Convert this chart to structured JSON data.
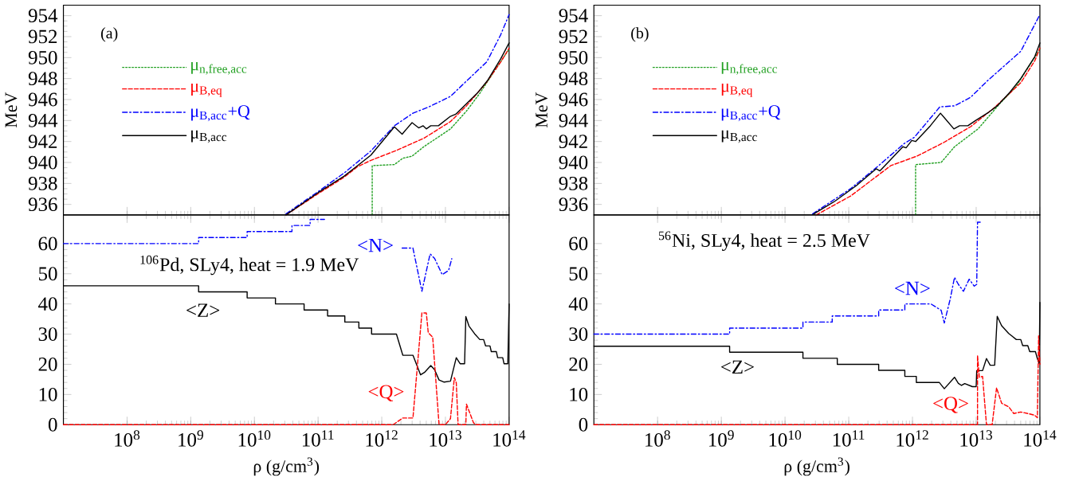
{
  "chart_data": [
    {
      "type": "line",
      "log": "x",
      "xlim": [
        10000000.0,
        100000000000000.0
      ],
      "ylim": [
        935,
        955
      ],
      "tick_labels": "y",
      "legend": "top left",
      "ylabel": "MeV",
      "annotations": [
        "(a)"
      ],
      "xticks": [
        {
          "value": 100000000.0,
          "label": null
        },
        {
          "value": 1000000000.0,
          "label": null
        },
        {
          "value": 10000000000.0,
          "label": null
        },
        {
          "value": 100000000000.0,
          "label": null
        },
        {
          "value": 1000000000000.0,
          "label": null
        },
        {
          "value": 10000000000000.0,
          "label": null
        },
        {
          "value": 100000000000000.0,
          "label": null
        }
      ],
      "yticks": [
        936,
        938,
        940,
        942,
        944,
        946,
        948,
        950,
        952,
        954
      ],
      "series": [
        {
          "name": "μ$_{n,free,acc}$",
          "color": "#22a022",
          "line_style": "dotted",
          "x": [
            708000000000.0,
            708000000000.0,
            1580000000000.0,
            2140000000000.0,
            2990000000000.0,
            4570000000000.0,
            12000000000000.0,
            21400000000000.0,
            34700000000000.0,
            63100000000000.0,
            100000000000000.0
          ],
          "values": [
            935.0,
            939.7,
            939.8,
            940.4,
            940.6,
            941.5,
            943.2,
            944.9,
            946.6,
            949.0,
            950.8
          ]
        },
        {
          "name": "μ$_{B,eq}$",
          "color": "#ff0000",
          "line_style": "dashed",
          "x": [
            31300000000.0,
            99000000000.0,
            257000000000.0,
            417000000000.0,
            676000000000.0,
            1780000000000.0,
            4570000000000.0,
            12000000000000.0,
            21400000000000.0,
            43700000000000.0,
            74100000000000.0,
            100000000000000.0
          ],
          "values": [
            935.0,
            937.0,
            938.6,
            939.6,
            940.2,
            941.2,
            942.3,
            943.9,
            945.4,
            947.6,
            949.6,
            950.9
          ]
        },
        {
          "name": "μ$_{B,acc}$+Q",
          "color": "#0000ff",
          "line_style": "dashdot",
          "x": [
            31300000000.0,
            99000000000.0,
            257000000000.0,
            676000000000.0,
            1580000000000.0,
            3090000000000.0,
            5500000000000.0,
            12000000000000.0,
            17800000000000.0,
            44700000000000.0,
            74100000000000.0,
            100000000000000.0
          ],
          "values": [
            935.1,
            937.2,
            939.0,
            941.1,
            943.5,
            944.7,
            945.3,
            946.3,
            947.3,
            949.6,
            952.2,
            954.1
          ]
        },
        {
          "name": "μ$_{B,acc}$",
          "color": "#000000",
          "line_style": "solid",
          "x": [
            31300000000.0,
            99000000000.0,
            257000000000.0,
            417000000000.0,
            676000000000.0,
            1580000000000.0,
            2090000000000.0,
            2990000000000.0,
            3800000000000.0,
            4470000000000.0,
            5010000000000.0,
            5890000000000.0,
            7760000000000.0,
            12000000000000.0,
            14500000000000.0,
            21400000000000.0,
            31600000000000.0,
            45700000000000.0,
            74100000000000.0,
            100000000000000.0
          ],
          "values": [
            935.0,
            937.1,
            938.7,
            939.7,
            940.7,
            943.4,
            942.7,
            943.8,
            943.3,
            943.5,
            943.2,
            943.5,
            943.5,
            944.4,
            944.6,
            945.6,
            946.6,
            947.8,
            949.9,
            951.4
          ]
        }
      ]
    },
    {
      "type": "line",
      "log": "x",
      "xlim": [
        10000000.0,
        100000000000000.0
      ],
      "ylim": [
        935,
        955
      ],
      "tick_labels": "y",
      "legend": "top left",
      "ylabel": "MeV",
      "annotations": [
        "(b)"
      ],
      "xticks": [
        {
          "value": 100000000.0,
          "label": null
        },
        {
          "value": 1000000000.0,
          "label": null
        },
        {
          "value": 10000000000.0,
          "label": null
        },
        {
          "value": 100000000000.0,
          "label": null
        },
        {
          "value": 1000000000000.0,
          "label": null
        },
        {
          "value": 10000000000000.0,
          "label": null
        },
        {
          "value": 100000000000000.0,
          "label": null
        }
      ],
      "yticks": [
        936,
        938,
        940,
        942,
        944,
        946,
        948,
        950,
        952,
        954
      ],
      "series": [
        {
          "name": "μ$_{n,free,acc}$",
          "color": "#22a022",
          "line_style": "dotted",
          "x": [
            1120000000000.0,
            1120000000000.0,
            2820000000000.0,
            4570000000000.0,
            10700000000000.0,
            23400000000000.0,
            41700000000000.0,
            100000000000000.0
          ],
          "values": [
            935.0,
            939.8,
            940.0,
            941.5,
            943.2,
            945.6,
            947.2,
            950.8
          ]
        },
        {
          "name": "μ$_{B,eq}$",
          "color": "#ff0000",
          "line_style": "dashed",
          "x": [
            30900000000.0,
            107000000000.0,
            457000000000.0,
            1170000000000.0,
            3090000000000.0,
            8130000000000.0,
            19100000000000.0,
            50100000000000.0,
            83200000000000.0,
            100000000000000.0
          ],
          "values": [
            935.0,
            936.8,
            939.7,
            940.6,
            941.9,
            943.4,
            945.2,
            947.6,
            949.7,
            950.9
          ]
        },
        {
          "name": "μ$_{B,acc}$+Q",
          "color": "#0000ff",
          "line_style": "dashdot",
          "x": [
            27000000000.0,
            107000000000.0,
            282000000000.0,
            741000000000.0,
            1070000000000.0,
            2690000000000.0,
            4570000000000.0,
            8130000000000.0,
            15100000000000.0,
            50100000000000.0,
            100000000000000.0
          ],
          "values": [
            935.1,
            937.5,
            939.6,
            941.8,
            942.4,
            945.3,
            945.4,
            946.2,
            947.8,
            950.6,
            954.1
          ]
        },
        {
          "name": "μ$_{B,acc}$",
          "color": "#000000",
          "line_style": "solid",
          "x": [
            28200000000.0,
            60300000000.0,
            132000000000.0,
            269000000000.0,
            309000000000.0,
            708000000000.0,
            794000000000.0,
            977000000000.0,
            1120000000000.0,
            1910000000000.0,
            2750000000000.0,
            3240000000000.0,
            4470000000000.0,
            5500000000000.0,
            7410000000000.0,
            9770000000000.0,
            15800000000000.0,
            21400000000000.0,
            33900000000000.0,
            50100000000000.0,
            83200000000000.0,
            100000000000000.0
          ],
          "values": [
            935.1,
            936.3,
            937.8,
            939.4,
            939.2,
            941.5,
            941.4,
            942.1,
            942.0,
            943.5,
            944.7,
            944.2,
            943.2,
            943.5,
            943.5,
            944.0,
            944.8,
            945.4,
            946.7,
            948.0,
            950.1,
            951.4
          ]
        }
      ]
    },
    {
      "type": "line",
      "log": "x",
      "xlim": [
        10000000.0,
        100000000000000.0
      ],
      "ylim": [
        0,
        69.5
      ],
      "xlabel": "ρ (g/cm$^{3}$)",
      "annotations": [
        "$^{106}$Pd, SLy4, heat = 1.9 MeV"
      ],
      "xticks": [
        {
          "value": 100000000.0,
          "label": "10$^{8}$"
        },
        {
          "value": 1000000000.0,
          "label": "10$^{9}$"
        },
        {
          "value": 10000000000.0,
          "label": "10$^{10}$"
        },
        {
          "value": 100000000000.0,
          "label": "10$^{11}$"
        },
        {
          "value": 1000000000000.0,
          "label": "10$^{12}$"
        },
        {
          "value": 10000000000000.0,
          "label": "10$^{13}$"
        },
        {
          "value": 100000000000000.0,
          "label": "10$^{14}$"
        }
      ],
      "yticks": [
        0,
        10,
        20,
        30,
        40,
        50,
        60
      ],
      "series": [
        {
          "name": "<Z>",
          "color": "#000000",
          "line_style": "solid",
          "x": [
            10000000.0,
            1330000000.0,
            1330000000.0,
            7690000000.0,
            7690000000.0,
            21400000000.0,
            21400000000.0,
            60300000000.0,
            60300000000.0,
            141000000000.0,
            141000000000.0,
            263000000000.0,
            263000000000.0,
            437000000000.0,
            437000000000.0,
            692000000000.0,
            692000000000.0,
            1700000000000.0,
            2140000000000.0,
            3090000000000.0,
            4070000000000.0,
            4680000000000.0,
            5890000000000.0,
            6760000000000.0,
            7940000000000.0,
            9550000000000.0,
            12000000000000.0,
            14800000000000.0,
            17000000000000.0,
            20000000000000.0,
            20900000000000.0,
            23400000000000.0,
            28800000000000.0,
            34700000000000.0,
            39800000000000.0,
            42700000000000.0,
            50100000000000.0,
            52500000000000.0,
            63100000000000.0,
            66100000000000.0,
            79400000000000.0,
            83200000000000.0,
            95500000000000.0,
            100000000000000.0
          ],
          "values": [
            46,
            46,
            44,
            44,
            42,
            42,
            40,
            40,
            38,
            38,
            36,
            36,
            34,
            34,
            32,
            32,
            30,
            30,
            23,
            23,
            16.5,
            17.3,
            19.6,
            18.2,
            14.8,
            14.1,
            14.4,
            22.2,
            20.2,
            20.2,
            35.8,
            32.7,
            30.1,
            28.2,
            28.2,
            26.1,
            26.1,
            24.2,
            24.2,
            22.2,
            22.2,
            20.2,
            20.2,
            40
          ]
        },
        {
          "name": "<N>",
          "color": "#0000ff",
          "line_style": "dashdot",
          "x": [
            10000000.0,
            1330000000.0,
            1330000000.0,
            7690000000.0,
            7690000000.0,
            38900000000.0,
            38900000000.0,
            75000000000.0,
            75000000000.0,
            126000000000.0,
            500000000000.0,
            2090000000000.0,
            3090000000000.0,
            4270000000000.0,
            5750000000000.0,
            6760000000000.0,
            8910000000000.0,
            11200000000000.0,
            12600000000000.0
          ],
          "values": [
            60,
            60,
            62,
            62,
            64,
            64,
            66,
            66,
            68,
            68,
            null,
            58.5,
            58.5,
            44.2,
            56.6,
            55.1,
            49.7,
            51.1,
            55.0
          ]
        },
        {
          "name": "<Q>",
          "color": "#ff0000",
          "line_style": "dashed",
          "x": [
            10000000.0,
            1510000000000.0,
            2140000000000.0,
            3090000000000.0,
            4270000000000.0,
            5010000000000.0,
            5370000000000.0,
            6310000000000.0,
            7940000000000.0,
            10000000000000.0,
            12000000000000.0,
            13800000000000.0,
            14800000000000.0,
            15800000000000.0,
            20900000000000.0,
            21400000000000.0,
            24500000000000.0,
            27500000000000.0,
            29500000000000.0,
            100000000000000.0
          ],
          "values": [
            0,
            0,
            2.2,
            2.2,
            37,
            37,
            30.5,
            29,
            0,
            0,
            2,
            15.6,
            13.9,
            0,
            0,
            6.8,
            3.5,
            0.7,
            0,
            0
          ]
        }
      ]
    },
    {
      "type": "line",
      "log": "x",
      "xlim": [
        10000000.0,
        100000000000000.0
      ],
      "ylim": [
        0,
        69.5
      ],
      "xlabel": "ρ (g/cm$^{3}$)",
      "annotations": [
        "$^{56}$Ni, SLy4, heat = 2.5 MeV"
      ],
      "xticks": [
        {
          "value": 100000000.0,
          "label": "10$^{8}$"
        },
        {
          "value": 1000000000.0,
          "label": "10$^{9}$"
        },
        {
          "value": 10000000000.0,
          "label": "10$^{10}$"
        },
        {
          "value": 100000000000.0,
          "label": "10$^{11}$"
        },
        {
          "value": 1000000000000.0,
          "label": "10$^{12}$"
        },
        {
          "value": 10000000000000.0,
          "label": "10$^{13}$"
        },
        {
          "value": 100000000000000.0,
          "label": "10$^{14}$"
        }
      ],
      "yticks": [
        0,
        10,
        20,
        30,
        40,
        50,
        60
      ],
      "series": [
        {
          "name": "<Z>",
          "color": "#000000",
          "line_style": "solid",
          "x": [
            10000000.0,
            1350000000.0,
            1350000000.0,
            19100000000.0,
            19100000000.0,
            66100000000.0,
            66100000000.0,
            295000000000.0,
            295000000000.0,
            759000000000.0,
            759000000000.0,
            1150000000000.0,
            1150000000000.0,
            2630000000000.0,
            3160000000000.0,
            4570000000000.0,
            5250000000000.0,
            5890000000000.0,
            6610000000000.0,
            8710000000000.0,
            10000000000000.0,
            10200000000000.0,
            12600000000000.0,
            14500000000000.0,
            16600000000000.0,
            19500000000000.0,
            21400000000000.0,
            25100000000000.0,
            32400000000000.0,
            42700000000000.0,
            50100000000000.0,
            53700000000000.0,
            64600000000000.0,
            69200000000000.0,
            85100000000000.0,
            91200000000000.0,
            97700000000000.0,
            100000000000000.0
          ],
          "values": [
            26,
            26,
            24,
            24,
            22,
            22,
            20,
            20,
            18,
            18,
            16,
            16,
            14,
            14,
            11.9,
            15.7,
            13.7,
            13.0,
            13.6,
            12.6,
            12.6,
            17.9,
            17.9,
            21.9,
            19.7,
            19.7,
            35.9,
            32.8,
            30.2,
            28.2,
            28.2,
            26.2,
            26.2,
            24.2,
            24.2,
            21.9,
            20.2,
            40.5
          ]
        },
        {
          "name": "<N>",
          "color": "#0000ff",
          "line_style": "dashdot",
          "x": [
            10000000.0,
            1350000000.0,
            1350000000.0,
            19100000000.0,
            19100000000.0,
            55000000000.0,
            55000000000.0,
            295000000000.0,
            295000000000.0,
            759000000000.0,
            759000000000.0,
            1950000000000.0,
            2820000000000.0,
            3160000000000.0,
            3890000000000.0,
            4570000000000.0,
            5250000000000.0,
            6310000000000.0,
            7760000000000.0,
            9330000000000.0,
            10200000000000.0,
            10500000000000.0,
            12000000000000.0
          ],
          "values": [
            30,
            30,
            32,
            32,
            34,
            34,
            36,
            36,
            38,
            38,
            40,
            40,
            37.9,
            33.7,
            41.4,
            48.8,
            46.5,
            44.2,
            48.2,
            45.9,
            46.5,
            67.1,
            67.1
          ]
        },
        {
          "name": "<Q>",
          "color": "#ff0000",
          "line_style": "dashed",
          "x": [
            10000000.0,
            10500000000000.0,
            10500000000000.0,
            11200000000000.0,
            12600000000000.0,
            14500000000000.0,
            17800000000000.0,
            20900000000000.0,
            25100000000000.0,
            32400000000000.0,
            38900000000000.0,
            50100000000000.0,
            64600000000000.0,
            83200000000000.0,
            91200000000000.0,
            95500000000000.0,
            100000000000000.0
          ],
          "values": [
            0,
            0,
            22.9,
            15.7,
            16,
            0,
            0,
            12.2,
            7.1,
            5.9,
            3.7,
            4.2,
            3.7,
            3.1,
            2.3,
            29.4,
            20
          ]
        }
      ]
    }
  ]
}
